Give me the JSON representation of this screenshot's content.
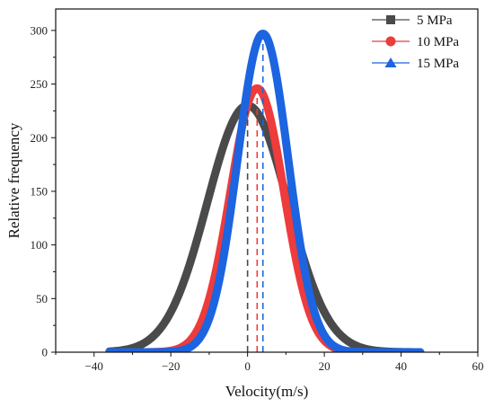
{
  "chart_data": {
    "type": "line",
    "title": "",
    "xlabel": "Velocity(m/s)",
    "ylabel": "Relative frequency",
    "xlim": [
      -50,
      60
    ],
    "ylim": [
      0,
      320
    ],
    "xticks": [
      -40,
      -20,
      0,
      20,
      40,
      60
    ],
    "yticks": [
      0,
      50,
      100,
      150,
      200,
      250,
      300
    ],
    "grid": false,
    "legend_position": "top-right",
    "series": [
      {
        "name": "5 MPa",
        "color": "#4a4a4a",
        "marker": "square",
        "x_range": [
          -36,
          45
        ],
        "peak_x": 0,
        "peak_y": 230,
        "sigma": 10.5,
        "dashed_peak_line": true
      },
      {
        "name": "10 MPa",
        "color": "#ee3b3b",
        "marker": "circle",
        "x_range": [
          -36,
          45
        ],
        "peak_x": 2.5,
        "peak_y": 246,
        "sigma": 7.0,
        "dashed_peak_line": true
      },
      {
        "name": "15 MPa",
        "color": "#1c64e0",
        "marker": "triangle",
        "x_range": [
          -36,
          45
        ],
        "peak_x": 4,
        "peak_y": 297,
        "sigma": 6.6,
        "dashed_peak_line": true
      }
    ]
  }
}
